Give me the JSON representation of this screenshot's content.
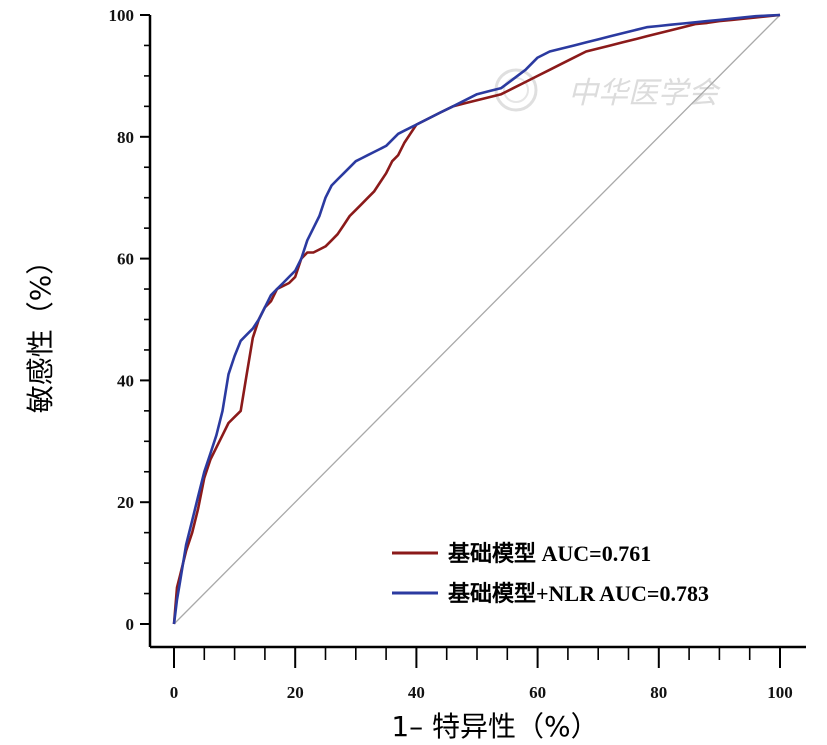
{
  "chart_data": {
    "type": "line",
    "title": "",
    "xlabel": "1– 特异性（%）",
    "ylabel": "敏感性（%）",
    "xlim": [
      0,
      100
    ],
    "ylim": [
      0,
      100
    ],
    "xticks": [
      0,
      20,
      40,
      60,
      80,
      100
    ],
    "yticks": [
      0,
      20,
      40,
      60,
      80,
      100
    ],
    "grid": false,
    "legend_position": "bottom-right",
    "watermark": "中华医学会",
    "reference_line": {
      "x": [
        0,
        100
      ],
      "y": [
        0,
        100
      ],
      "color": "#a9a9a9"
    },
    "series": [
      {
        "name": "基础模型 AUC=0.761",
        "color": "#8b1a1a",
        "x": [
          0,
          0.5,
          1,
          1.5,
          2,
          3,
          4,
          5,
          6,
          7,
          8,
          9,
          10,
          11,
          12,
          13,
          14,
          15,
          16,
          17,
          18,
          19,
          20,
          21,
          22,
          23,
          24,
          25,
          26,
          27,
          28,
          29,
          30,
          31,
          32,
          33,
          34,
          35,
          36,
          37,
          38,
          39,
          40,
          42,
          44,
          46,
          48,
          50,
          52,
          54,
          56,
          58,
          60,
          62,
          64,
          66,
          68,
          70,
          72,
          74,
          76,
          78,
          80,
          82,
          84,
          86,
          88,
          90,
          92,
          94,
          96,
          98,
          100
        ],
        "y": [
          0,
          6,
          8,
          10,
          12,
          15,
          19,
          24,
          27,
          29,
          31,
          33,
          34,
          35,
          41,
          47,
          50,
          52,
          53,
          55,
          55.5,
          56,
          57,
          60,
          61,
          61,
          61.5,
          62,
          63,
          64,
          65.5,
          67,
          68,
          69,
          70,
          71,
          72.5,
          74,
          76,
          77,
          79,
          80.5,
          82,
          83,
          84,
          85,
          85.5,
          86,
          86.5,
          87,
          88,
          89,
          90,
          91,
          92,
          93,
          94,
          94.5,
          95,
          95.5,
          96,
          96.5,
          97,
          97.5,
          98,
          98.5,
          98.7,
          99,
          99.2,
          99.4,
          99.6,
          99.8,
          100
        ]
      },
      {
        "name": "基础模型+NLR AUC=0.783",
        "color": "#2b3aa0",
        "x": [
          0,
          0.5,
          1,
          1.5,
          2,
          3,
          4,
          5,
          6,
          7,
          8,
          9,
          10,
          11,
          12,
          13,
          14,
          15,
          16,
          17,
          18,
          19,
          20,
          21,
          22,
          23,
          24,
          25,
          26,
          27,
          28,
          29,
          30,
          31,
          32,
          33,
          34,
          35,
          36,
          37,
          38,
          39,
          40,
          42,
          44,
          46,
          48,
          50,
          52,
          54,
          56,
          58,
          60,
          62,
          64,
          66,
          68,
          70,
          72,
          74,
          76,
          78,
          80,
          82,
          84,
          86,
          88,
          90,
          92,
          94,
          96,
          98,
          100
        ],
        "y": [
          0,
          4,
          7,
          10,
          13,
          17,
          21,
          25,
          28,
          31,
          35,
          41,
          44,
          46.5,
          47.5,
          48.5,
          50,
          52,
          54,
          55,
          56,
          57,
          58,
          60,
          63,
          65,
          67,
          70,
          72,
          73,
          74,
          75,
          76,
          76.5,
          77,
          77.5,
          78,
          78.5,
          79.5,
          80.5,
          81,
          81.5,
          82,
          83,
          84,
          85,
          86,
          87,
          87.5,
          88,
          89.5,
          91,
          93,
          94,
          94.5,
          95,
          95.5,
          96,
          96.5,
          97,
          97.5,
          98,
          98.2,
          98.4,
          98.6,
          98.8,
          99,
          99.2,
          99.4,
          99.6,
          99.8,
          99.9,
          100
        ]
      }
    ]
  }
}
